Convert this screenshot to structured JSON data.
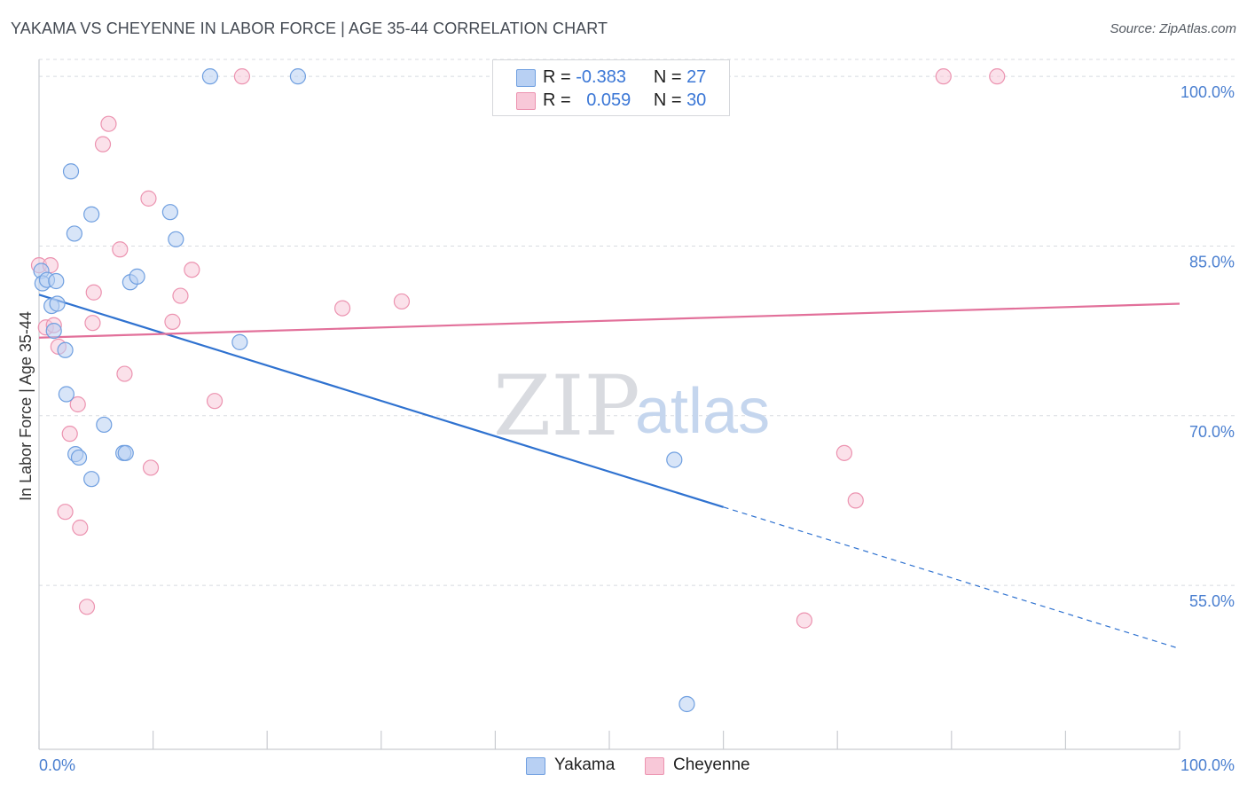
{
  "header": {
    "title": "YAKAMA VS CHEYENNE IN LABOR FORCE | AGE 35-44 CORRELATION CHART",
    "source": "Source: ZipAtlas.com"
  },
  "watermark": {
    "zip": "ZIP",
    "atlas": "atlas"
  },
  "legend": {
    "rows": [
      {
        "r_label": "R =",
        "r_value": "-0.383",
        "n_label": "N =",
        "n_value": "27"
      },
      {
        "r_label": "R =",
        "r_value": "0.059",
        "n_label": "N =",
        "n_value": "30"
      }
    ],
    "bottom": [
      {
        "label": "Yakama"
      },
      {
        "label": "Cheyenne"
      }
    ]
  },
  "colors": {
    "yakama_fill": "#b8d0f3",
    "yakama_stroke": "#6f9fe0",
    "yakama_line": "#2f72d0",
    "cheyenne_fill": "#f8c8d8",
    "cheyenne_stroke": "#ec93b0",
    "cheyenne_line": "#e2709a",
    "tick_text": "#4a7fd0",
    "grid": "#d8dbe0"
  },
  "chart_data": {
    "type": "scatter",
    "title": "YAKAMA VS CHEYENNE IN LABOR FORCE | AGE 35-44 CORRELATION CHART",
    "xlabel": "",
    "ylabel": "In Labor Force | Age 35-44",
    "xlim": [
      0,
      100
    ],
    "ylim": [
      40.5,
      101.5
    ],
    "x_tick_labels": [
      {
        "value": 0,
        "label": "0.0%"
      },
      {
        "value": 100,
        "label": "100.0%"
      }
    ],
    "y_ticks": [
      {
        "value": 55,
        "label": "55.0%"
      },
      {
        "value": 70,
        "label": "70.0%"
      },
      {
        "value": 85,
        "label": "85.0%"
      },
      {
        "value": 100,
        "label": "100.0%"
      }
    ],
    "series": [
      {
        "name": "Yakama",
        "r": -0.383,
        "n": 27,
        "points": [
          [
            0.2,
            82.8
          ],
          [
            0.3,
            81.7
          ],
          [
            0.7,
            82.0
          ],
          [
            1.5,
            81.9
          ],
          [
            1.1,
            79.7
          ],
          [
            1.6,
            79.9
          ],
          [
            1.3,
            77.5
          ],
          [
            2.3,
            75.8
          ],
          [
            2.4,
            71.9
          ],
          [
            2.8,
            91.6
          ],
          [
            3.1,
            86.1
          ],
          [
            3.2,
            66.6
          ],
          [
            3.5,
            66.3
          ],
          [
            4.6,
            87.8
          ],
          [
            4.6,
            64.4
          ],
          [
            5.7,
            69.2
          ],
          [
            7.4,
            66.7
          ],
          [
            7.6,
            66.7
          ],
          [
            8.0,
            81.8
          ],
          [
            8.6,
            82.3
          ],
          [
            11.5,
            88.0
          ],
          [
            12.0,
            85.6
          ],
          [
            15.0,
            100.0
          ],
          [
            17.6,
            76.5
          ],
          [
            22.7,
            100.0
          ],
          [
            55.7,
            66.1
          ],
          [
            56.8,
            44.5
          ]
        ],
        "trend": {
          "x0": 0,
          "y0": 80.7,
          "x_solid_end": 60,
          "x1": 100,
          "y1": 49.4
        }
      },
      {
        "name": "Cheyenne",
        "r": 0.059,
        "n": 30,
        "points": [
          [
            0.0,
            83.3
          ],
          [
            0.6,
            77.8
          ],
          [
            1.0,
            83.3
          ],
          [
            1.3,
            78.0
          ],
          [
            1.7,
            76.1
          ],
          [
            2.3,
            61.5
          ],
          [
            2.7,
            68.4
          ],
          [
            3.4,
            71.0
          ],
          [
            3.6,
            60.1
          ],
          [
            4.2,
            53.1
          ],
          [
            4.7,
            78.2
          ],
          [
            4.8,
            80.9
          ],
          [
            5.6,
            94.0
          ],
          [
            6.1,
            95.8
          ],
          [
            7.1,
            84.7
          ],
          [
            7.5,
            73.7
          ],
          [
            9.6,
            89.2
          ],
          [
            9.8,
            65.4
          ],
          [
            11.7,
            78.3
          ],
          [
            12.4,
            80.6
          ],
          [
            13.4,
            82.9
          ],
          [
            15.4,
            71.3
          ],
          [
            17.8,
            100.0
          ],
          [
            26.6,
            79.5
          ],
          [
            31.8,
            80.1
          ],
          [
            67.1,
            51.9
          ],
          [
            70.6,
            66.7
          ],
          [
            71.6,
            62.5
          ],
          [
            79.3,
            100.0
          ],
          [
            84.0,
            100.0
          ]
        ],
        "trend": {
          "x0": 0,
          "y0": 76.9,
          "x1": 100,
          "y1": 79.9
        }
      }
    ]
  }
}
